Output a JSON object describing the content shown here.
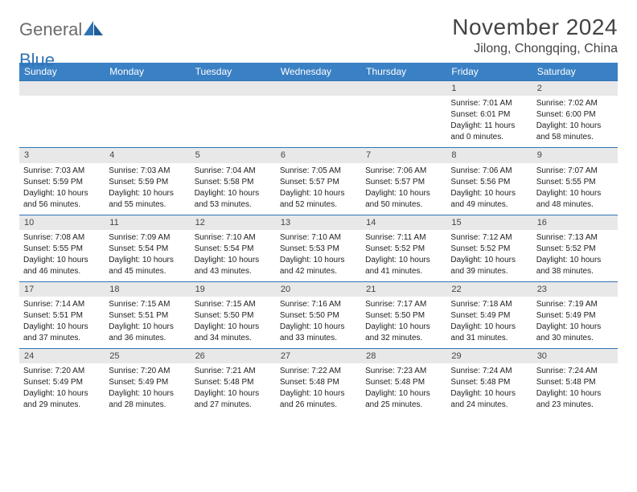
{
  "logo": {
    "text1": "General",
    "text2": "Blue"
  },
  "title": "November 2024",
  "location": "Jilong, Chongqing, China",
  "colors": {
    "header_bg": "#3a80c4",
    "border": "#2f73b5",
    "daynum_bg": "#e8e8e8",
    "logo_gray": "#6b6b6b",
    "logo_blue": "#2f73b5"
  },
  "weekdays": [
    "Sunday",
    "Monday",
    "Tuesday",
    "Wednesday",
    "Thursday",
    "Friday",
    "Saturday"
  ],
  "weeks": [
    [
      {
        "empty": true
      },
      {
        "empty": true
      },
      {
        "empty": true
      },
      {
        "empty": true
      },
      {
        "empty": true
      },
      {
        "day": "1",
        "sunrise": "Sunrise: 7:01 AM",
        "sunset": "Sunset: 6:01 PM",
        "daylight1": "Daylight: 11 hours",
        "daylight2": "and 0 minutes."
      },
      {
        "day": "2",
        "sunrise": "Sunrise: 7:02 AM",
        "sunset": "Sunset: 6:00 PM",
        "daylight1": "Daylight: 10 hours",
        "daylight2": "and 58 minutes."
      }
    ],
    [
      {
        "day": "3",
        "sunrise": "Sunrise: 7:03 AM",
        "sunset": "Sunset: 5:59 PM",
        "daylight1": "Daylight: 10 hours",
        "daylight2": "and 56 minutes."
      },
      {
        "day": "4",
        "sunrise": "Sunrise: 7:03 AM",
        "sunset": "Sunset: 5:59 PM",
        "daylight1": "Daylight: 10 hours",
        "daylight2": "and 55 minutes."
      },
      {
        "day": "5",
        "sunrise": "Sunrise: 7:04 AM",
        "sunset": "Sunset: 5:58 PM",
        "daylight1": "Daylight: 10 hours",
        "daylight2": "and 53 minutes."
      },
      {
        "day": "6",
        "sunrise": "Sunrise: 7:05 AM",
        "sunset": "Sunset: 5:57 PM",
        "daylight1": "Daylight: 10 hours",
        "daylight2": "and 52 minutes."
      },
      {
        "day": "7",
        "sunrise": "Sunrise: 7:06 AM",
        "sunset": "Sunset: 5:57 PM",
        "daylight1": "Daylight: 10 hours",
        "daylight2": "and 50 minutes."
      },
      {
        "day": "8",
        "sunrise": "Sunrise: 7:06 AM",
        "sunset": "Sunset: 5:56 PM",
        "daylight1": "Daylight: 10 hours",
        "daylight2": "and 49 minutes."
      },
      {
        "day": "9",
        "sunrise": "Sunrise: 7:07 AM",
        "sunset": "Sunset: 5:55 PM",
        "daylight1": "Daylight: 10 hours",
        "daylight2": "and 48 minutes."
      }
    ],
    [
      {
        "day": "10",
        "sunrise": "Sunrise: 7:08 AM",
        "sunset": "Sunset: 5:55 PM",
        "daylight1": "Daylight: 10 hours",
        "daylight2": "and 46 minutes."
      },
      {
        "day": "11",
        "sunrise": "Sunrise: 7:09 AM",
        "sunset": "Sunset: 5:54 PM",
        "daylight1": "Daylight: 10 hours",
        "daylight2": "and 45 minutes."
      },
      {
        "day": "12",
        "sunrise": "Sunrise: 7:10 AM",
        "sunset": "Sunset: 5:54 PM",
        "daylight1": "Daylight: 10 hours",
        "daylight2": "and 43 minutes."
      },
      {
        "day": "13",
        "sunrise": "Sunrise: 7:10 AM",
        "sunset": "Sunset: 5:53 PM",
        "daylight1": "Daylight: 10 hours",
        "daylight2": "and 42 minutes."
      },
      {
        "day": "14",
        "sunrise": "Sunrise: 7:11 AM",
        "sunset": "Sunset: 5:52 PM",
        "daylight1": "Daylight: 10 hours",
        "daylight2": "and 41 minutes."
      },
      {
        "day": "15",
        "sunrise": "Sunrise: 7:12 AM",
        "sunset": "Sunset: 5:52 PM",
        "daylight1": "Daylight: 10 hours",
        "daylight2": "and 39 minutes."
      },
      {
        "day": "16",
        "sunrise": "Sunrise: 7:13 AM",
        "sunset": "Sunset: 5:52 PM",
        "daylight1": "Daylight: 10 hours",
        "daylight2": "and 38 minutes."
      }
    ],
    [
      {
        "day": "17",
        "sunrise": "Sunrise: 7:14 AM",
        "sunset": "Sunset: 5:51 PM",
        "daylight1": "Daylight: 10 hours",
        "daylight2": "and 37 minutes."
      },
      {
        "day": "18",
        "sunrise": "Sunrise: 7:15 AM",
        "sunset": "Sunset: 5:51 PM",
        "daylight1": "Daylight: 10 hours",
        "daylight2": "and 36 minutes."
      },
      {
        "day": "19",
        "sunrise": "Sunrise: 7:15 AM",
        "sunset": "Sunset: 5:50 PM",
        "daylight1": "Daylight: 10 hours",
        "daylight2": "and 34 minutes."
      },
      {
        "day": "20",
        "sunrise": "Sunrise: 7:16 AM",
        "sunset": "Sunset: 5:50 PM",
        "daylight1": "Daylight: 10 hours",
        "daylight2": "and 33 minutes."
      },
      {
        "day": "21",
        "sunrise": "Sunrise: 7:17 AM",
        "sunset": "Sunset: 5:50 PM",
        "daylight1": "Daylight: 10 hours",
        "daylight2": "and 32 minutes."
      },
      {
        "day": "22",
        "sunrise": "Sunrise: 7:18 AM",
        "sunset": "Sunset: 5:49 PM",
        "daylight1": "Daylight: 10 hours",
        "daylight2": "and 31 minutes."
      },
      {
        "day": "23",
        "sunrise": "Sunrise: 7:19 AM",
        "sunset": "Sunset: 5:49 PM",
        "daylight1": "Daylight: 10 hours",
        "daylight2": "and 30 minutes."
      }
    ],
    [
      {
        "day": "24",
        "sunrise": "Sunrise: 7:20 AM",
        "sunset": "Sunset: 5:49 PM",
        "daylight1": "Daylight: 10 hours",
        "daylight2": "and 29 minutes."
      },
      {
        "day": "25",
        "sunrise": "Sunrise: 7:20 AM",
        "sunset": "Sunset: 5:49 PM",
        "daylight1": "Daylight: 10 hours",
        "daylight2": "and 28 minutes."
      },
      {
        "day": "26",
        "sunrise": "Sunrise: 7:21 AM",
        "sunset": "Sunset: 5:48 PM",
        "daylight1": "Daylight: 10 hours",
        "daylight2": "and 27 minutes."
      },
      {
        "day": "27",
        "sunrise": "Sunrise: 7:22 AM",
        "sunset": "Sunset: 5:48 PM",
        "daylight1": "Daylight: 10 hours",
        "daylight2": "and 26 minutes."
      },
      {
        "day": "28",
        "sunrise": "Sunrise: 7:23 AM",
        "sunset": "Sunset: 5:48 PM",
        "daylight1": "Daylight: 10 hours",
        "daylight2": "and 25 minutes."
      },
      {
        "day": "29",
        "sunrise": "Sunrise: 7:24 AM",
        "sunset": "Sunset: 5:48 PM",
        "daylight1": "Daylight: 10 hours",
        "daylight2": "and 24 minutes."
      },
      {
        "day": "30",
        "sunrise": "Sunrise: 7:24 AM",
        "sunset": "Sunset: 5:48 PM",
        "daylight1": "Daylight: 10 hours",
        "daylight2": "and 23 minutes."
      }
    ]
  ]
}
